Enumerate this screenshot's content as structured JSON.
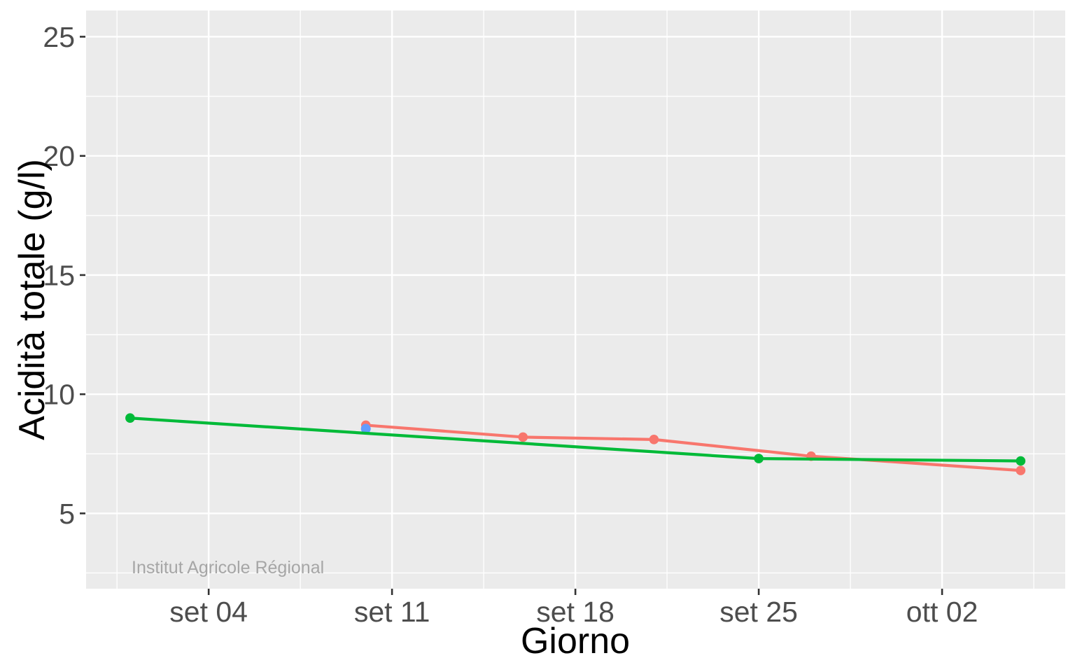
{
  "chart_data": {
    "type": "line",
    "title": "",
    "xlabel": "Giorno",
    "ylabel": "Acidità totale (g/l)",
    "watermark": "Institut Agricole Régional",
    "legend": "none",
    "grid": "on",
    "x_axis": {
      "unit": "days relative to set 04",
      "tick_labels": [
        "set 04",
        "set 11",
        "set 18",
        "set 25",
        "ott 02"
      ],
      "tick_days": [
        0,
        7,
        14,
        21,
        28
      ],
      "minor_days": [
        -3.5,
        3.5,
        10.5,
        17.5,
        24.5,
        31.5
      ],
      "domain_days": [
        -4.68,
        32.7
      ]
    },
    "y_axis": {
      "tick_labels": [
        "25",
        "20",
        "15",
        "10",
        "5"
      ],
      "tick_values": [
        25,
        20,
        15,
        10,
        5
      ],
      "minor_values": [
        22.5,
        17.5,
        12.5,
        7.5,
        2.5
      ],
      "domain": [
        1.84,
        26.1
      ]
    },
    "series": [
      {
        "name": "series-red",
        "color": "#F8766D",
        "marker_radius": 6.8,
        "points": [
          {
            "date": "set 10",
            "day": 6,
            "value": 8.7
          },
          {
            "date": "set 16",
            "day": 12,
            "value": 8.2
          },
          {
            "date": "set 21",
            "day": 17,
            "value": 8.1
          },
          {
            "date": "set 27",
            "day": 23,
            "value": 7.4
          },
          {
            "date": "ott 05",
            "day": 31,
            "value": 6.8
          }
        ]
      },
      {
        "name": "series-blue",
        "color": "#619CFF",
        "marker_radius": 7.0,
        "points": [
          {
            "date": "set 10",
            "day": 6,
            "value": 8.55
          }
        ]
      },
      {
        "name": "series-green",
        "color": "#00BA38",
        "marker_radius": 6.8,
        "points": [
          {
            "date": "set 01",
            "day": -3,
            "value": 9.0
          },
          {
            "date": "set 25",
            "day": 21,
            "value": 7.3
          },
          {
            "date": "ott 05",
            "day": 31,
            "value": 7.2
          }
        ]
      }
    ],
    "colors": {
      "page_bg": "#FFFFFF",
      "panel_bg": "#EBEBEB",
      "grid": "#FFFFFF",
      "tick_text": "#4D4D4D",
      "tick_mark": "#333333",
      "axis_title": "#000000",
      "watermark": "#A6A6A6"
    }
  }
}
